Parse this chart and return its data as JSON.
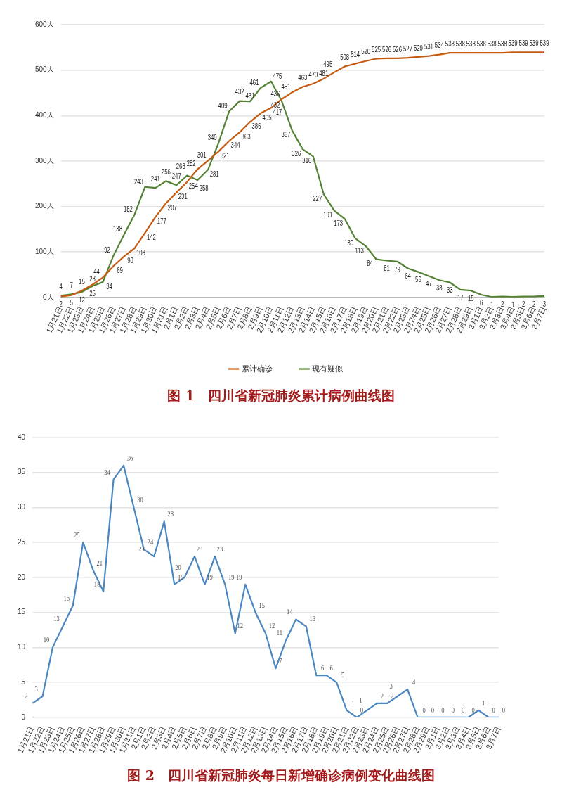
{
  "chart_data": [
    {
      "type": "line",
      "title": "图 1　四川省新冠肺炎累计病例曲线图",
      "categories": [
        "1月21日",
        "1月22日",
        "1月23日",
        "1月24日",
        "1月25日",
        "1月26日",
        "1月27日",
        "1月28日",
        "1月29日",
        "1月30日",
        "1月31日",
        "2月1日",
        "2月2日",
        "2月3日",
        "2月4日",
        "2月5日",
        "2月6日",
        "2月7日",
        "2月8日",
        "2月9日",
        "2月10日",
        "2月11日",
        "2月12日",
        "2月13日",
        "2月14日",
        "2月15日",
        "2月16日",
        "2月17日",
        "2月18日",
        "2月19日",
        "2月20日",
        "2月21日",
        "2月22日",
        "2月23日",
        "2月24日",
        "2月25日",
        "2月26日",
        "2月27日",
        "2月28日",
        "2月29日",
        "3月1日",
        "3月2日",
        "3月3日",
        "3月4日",
        "3月5日",
        "3月6日",
        "3月7日"
      ],
      "series": [
        {
          "name": "累计确诊",
          "color": "#c55a11",
          "values": [
            2,
            5,
            15,
            28,
            44,
            69,
            90,
            108,
            142,
            177,
            207,
            231,
            254,
            282,
            301,
            321,
            344,
            363,
            386,
            405,
            417,
            436,
            451,
            463,
            470,
            481,
            495,
            508,
            514,
            520,
            525,
            526,
            526,
            527,
            529,
            531,
            534,
            538,
            538,
            538,
            538,
            538,
            538,
            539,
            539,
            539,
            539
          ]
        },
        {
          "name": "现有疑似",
          "color": "#548235",
          "values": [
            4,
            7,
            12,
            25,
            34,
            92,
            138,
            182,
            243,
            241,
            256,
            247,
            268,
            258,
            281,
            340,
            409,
            432,
            431,
            461,
            475,
            432,
            367,
            326,
            310,
            227,
            191,
            173,
            130,
            113,
            84,
            81,
            79,
            64,
            56,
            47,
            38,
            33,
            17,
            15,
            6,
            1,
            2,
            1,
            2,
            2,
            3
          ]
        }
      ],
      "ylim": [
        0,
        600
      ],
      "yticks": [
        {
          "value": 0,
          "label": "0人"
        },
        {
          "value": 100,
          "label": "100人"
        },
        {
          "value": 200,
          "label": "200人"
        },
        {
          "value": 300,
          "label": "300人"
        },
        {
          "value": 400,
          "label": "400人"
        },
        {
          "value": 500,
          "label": "500人"
        },
        {
          "value": 600,
          "label": "600人"
        }
      ],
      "grid": "y",
      "legend": "bottom",
      "marker": "none",
      "data_labels": true
    },
    {
      "type": "line",
      "title": "图 2　四川省新冠肺炎每日新增确诊病例变化曲线图",
      "categories": [
        "1月21日",
        "1月22日",
        "1月23日",
        "1月24日",
        "1月25日",
        "1月26日",
        "1月27日",
        "1月28日",
        "1月29日",
        "1月30日",
        "1月31日",
        "2月1日",
        "2月2日",
        "2月3日",
        "2月4日",
        "2月5日",
        "2月6日",
        "2月7日",
        "2月8日",
        "2月9日",
        "2月10日",
        "2月11日",
        "2月12日",
        "2月13日",
        "2月14日",
        "2月15日",
        "2月16日",
        "2月17日",
        "2月18日",
        "2月19日",
        "2月20日",
        "2月21日",
        "2月22日",
        "2月23日",
        "2月24日",
        "2月25日",
        "2月26日",
        "2月27日",
        "2月28日",
        "2月29日",
        "3月1日",
        "3月2日",
        "3月3日",
        "3月4日",
        "3月5日",
        "3月6日",
        "3月7日"
      ],
      "series": [
        {
          "color": "#4a86c0",
          "values": [
            2,
            3,
            10,
            13,
            16,
            25,
            21,
            18,
            34,
            36,
            30,
            24,
            23,
            28,
            19,
            20,
            23,
            19,
            23,
            19,
            12,
            19,
            15,
            12,
            7,
            11,
            14,
            13,
            6,
            6,
            5,
            1,
            0,
            1,
            2,
            2,
            3,
            4,
            0,
            0,
            0,
            0,
            0,
            0,
            1,
            0,
            0
          ]
        }
      ],
      "ylim": [
        0,
        40
      ],
      "yticks": [
        0,
        5,
        10,
        15,
        20,
        25,
        30,
        35,
        40
      ],
      "grid": "y",
      "legend": false,
      "marker": "none",
      "data_labels": true
    }
  ]
}
